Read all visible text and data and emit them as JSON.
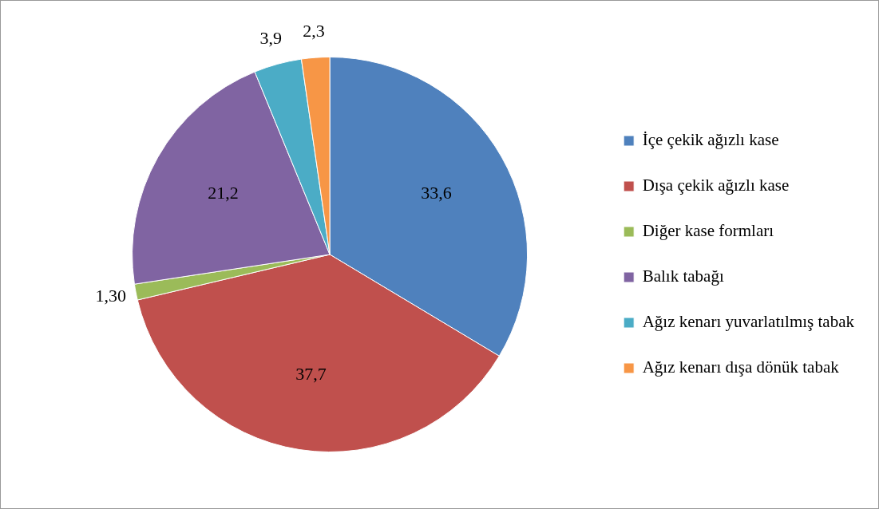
{
  "chart_data": {
    "type": "pie",
    "categories": [
      "İçe çekik ağızlı kase",
      "Dışa çekik ağızlı kase",
      "Diğer kase formları",
      "Balık tabağı",
      "Ağız kenarı yuvarlatılmış tabak",
      "Ağız kenarı dışa dönük tabak"
    ],
    "values": [
      33.6,
      37.7,
      1.3,
      21.2,
      3.9,
      2.3
    ],
    "value_labels": [
      "33,6",
      "37,7",
      "1,30",
      "21,2",
      "3,9",
      "2,3"
    ],
    "colors": [
      "#4f81bd",
      "#c0504d",
      "#9bbb59",
      "#8064a2",
      "#4bacc6",
      "#f79646"
    ],
    "legend": "right"
  }
}
